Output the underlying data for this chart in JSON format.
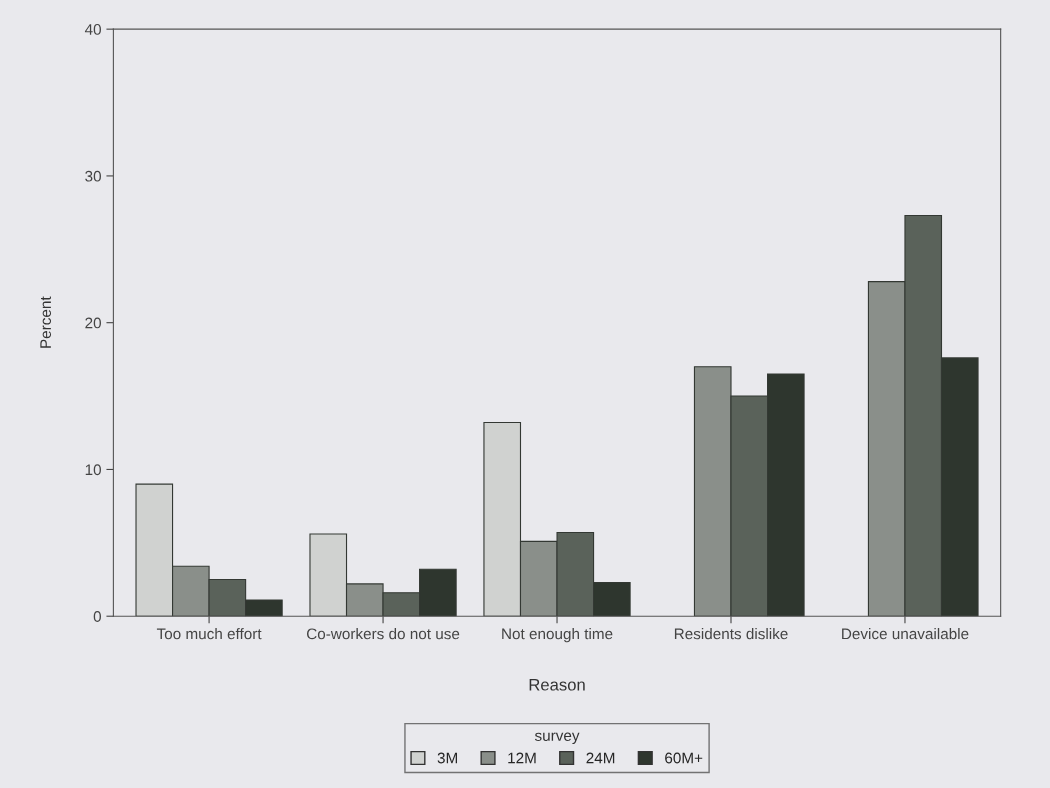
{
  "chart_data": {
    "type": "bar",
    "xlabel": "Reason",
    "ylabel": "Percent",
    "legend_title": "survey",
    "categories": [
      "Too much effort",
      "Co-workers do not use",
      "Not enough time",
      "Residents dislike",
      "Device unavailable"
    ],
    "series": [
      {
        "name": "3M",
        "color": "#d0d2d0",
        "values": [
          9.0,
          5.6,
          13.2,
          null,
          null
        ]
      },
      {
        "name": "12M",
        "color": "#8a8f8a",
        "values": [
          3.4,
          2.2,
          5.1,
          17.0,
          22.8
        ]
      },
      {
        "name": "24M",
        "color": "#5a625a",
        "values": [
          2.5,
          1.6,
          5.7,
          15.0,
          27.3
        ]
      },
      {
        "name": "60M+",
        "color": "#2e362e",
        "values": [
          1.1,
          3.2,
          2.3,
          16.5,
          17.6
        ]
      }
    ],
    "ylim": [
      0,
      40
    ],
    "yticks": [
      0,
      10,
      20,
      30,
      40
    ],
    "grid": false,
    "legend": "bottom"
  }
}
